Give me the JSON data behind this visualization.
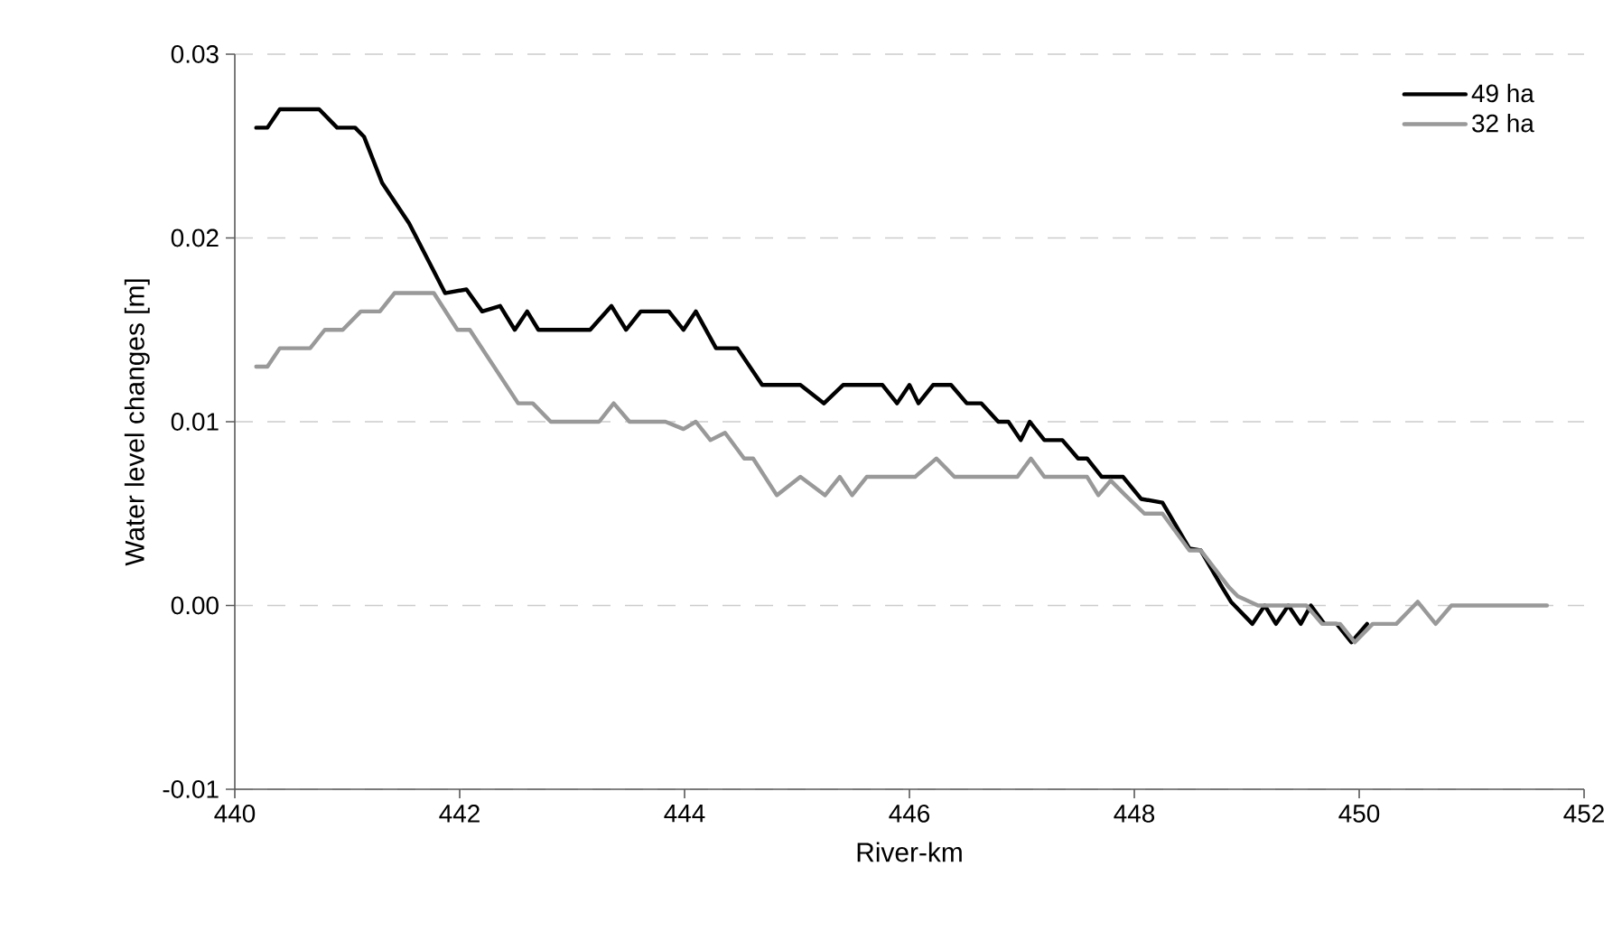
{
  "chart_data": {
    "type": "line",
    "xlabel": "River-km",
    "ylabel": "Water level changes  [m]",
    "xlim": [
      440,
      452
    ],
    "xticks": [
      440,
      442,
      444,
      446,
      448,
      450,
      452
    ],
    "ylim": [
      -0.01,
      0.03
    ],
    "yticks": [
      {
        "value": -0.01,
        "label": "-0.01"
      },
      {
        "value": 0,
        "label": "0.00"
      },
      {
        "value": 0.01,
        "label": "0.01"
      },
      {
        "value": 0.02,
        "label": "0.02"
      },
      {
        "value": 0.03,
        "label": "0.03"
      }
    ],
    "grid": "y",
    "legend": "top right",
    "line_style": "solid",
    "marker": "none",
    "series": [
      {
        "name": "49 ha",
        "color": "#000000",
        "x": [
          440.19,
          440.29,
          440.4,
          440.75,
          440.91,
          441.07,
          441.15,
          441.31,
          441.55,
          441.87,
          442.06,
          442.2,
          442.36,
          442.49,
          442.6,
          442.7,
          443.16,
          443.35,
          443.48,
          443.61,
          443.86,
          443.99,
          444.1,
          444.28,
          444.47,
          444.69,
          445.03,
          445.24,
          445.41,
          445.76,
          445.89,
          446.0,
          446.08,
          446.21,
          446.37,
          446.51,
          446.64,
          446.79,
          446.88,
          446.99,
          447.07,
          447.2,
          447.36,
          447.5,
          447.58,
          447.71,
          447.9,
          448.06,
          448.25,
          448.49,
          448.59,
          448.78,
          448.86,
          449.05,
          449.16,
          449.26,
          449.37,
          449.48,
          449.57,
          449.69,
          449.8,
          449.93,
          450.07
        ],
        "values": [
          0.026,
          0.026,
          0.027,
          0.027,
          0.026,
          0.026,
          0.0255,
          0.023,
          0.0208,
          0.017,
          0.0172,
          0.016,
          0.0163,
          0.015,
          0.016,
          0.015,
          0.015,
          0.0163,
          0.015,
          0.016,
          0.016,
          0.015,
          0.016,
          0.014,
          0.014,
          0.012,
          0.012,
          0.011,
          0.012,
          0.012,
          0.011,
          0.012,
          0.011,
          0.012,
          0.012,
          0.011,
          0.011,
          0.01,
          0.01,
          0.009,
          0.01,
          0.009,
          0.009,
          0.008,
          0.008,
          0.007,
          0.007,
          0.0058,
          0.0056,
          0.0031,
          0.003,
          0.001,
          0.0002,
          -0.001,
          0,
          -0.001,
          0,
          -0.001,
          0,
          -0.001,
          -0.001,
          -0.002,
          -0.001
        ]
      },
      {
        "name": "32 ha",
        "color": "#999999",
        "x": [
          440.19,
          440.29,
          440.4,
          440.67,
          440.8,
          440.96,
          441.12,
          441.29,
          441.42,
          441.77,
          441.98,
          442.09,
          442.52,
          442.65,
          442.81,
          443.24,
          443.37,
          443.51,
          443.83,
          443.99,
          444.1,
          444.23,
          444.36,
          444.53,
          444.61,
          444.82,
          445.03,
          445.25,
          445.38,
          445.49,
          445.62,
          446.05,
          446.24,
          446.4,
          446.96,
          447.08,
          447.2,
          447.58,
          447.68,
          447.79,
          447.92,
          448.09,
          448.25,
          448.49,
          448.59,
          448.84,
          448.92,
          449.1,
          449.53,
          449.67,
          449.83,
          449.96,
          450.12,
          450.33,
          450.52,
          450.68,
          450.82,
          451.67
        ],
        "values": [
          0.013,
          0.013,
          0.014,
          0.014,
          0.015,
          0.015,
          0.016,
          0.016,
          0.017,
          0.017,
          0.015,
          0.015,
          0.011,
          0.011,
          0.01,
          0.01,
          0.011,
          0.01,
          0.01,
          0.0096,
          0.01,
          0.009,
          0.0094,
          0.008,
          0.008,
          0.006,
          0.007,
          0.006,
          0.007,
          0.006,
          0.007,
          0.007,
          0.008,
          0.007,
          0.007,
          0.008,
          0.007,
          0.007,
          0.006,
          0.0068,
          0.006,
          0.005,
          0.005,
          0.003,
          0.003,
          0.001,
          0.0005,
          0,
          0,
          -0.001,
          -0.001,
          -0.002,
          -0.001,
          -0.001,
          0.0002,
          -0.001,
          0,
          0
        ]
      }
    ]
  }
}
